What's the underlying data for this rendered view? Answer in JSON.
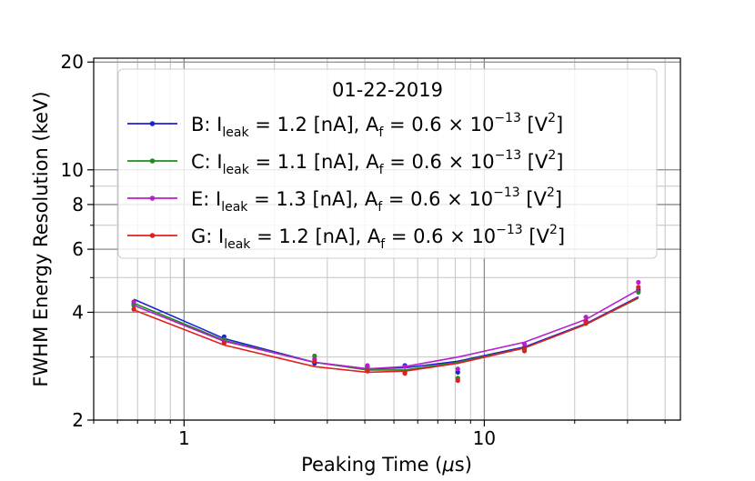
{
  "chart_data": {
    "type": "line",
    "xlabel": "Peaking Time (μs)",
    "ylabel": "FWHM Energy Resolution (keV)",
    "xscale": "log",
    "yscale": "log",
    "xlim": [
      0.5,
      45
    ],
    "ylim": [
      2,
      20.5
    ],
    "xticks": [
      1,
      10
    ],
    "xtick_labels": [
      "1",
      "10"
    ],
    "yticks": [
      2,
      4,
      6,
      8,
      10,
      20
    ],
    "ytick_labels": [
      "2",
      "4",
      "6",
      "8",
      "10",
      "20"
    ],
    "grid": true,
    "legend": {
      "title": "01-22-2019",
      "placement": "upper-center"
    },
    "series": [
      {
        "name": "B: I_leak = 1.2 [nA], A_f = 0.6 × 10^-13 [V^2]",
        "label_parts": {
          "id": "B",
          "ileak": "1.2",
          "af": "0.6",
          "exp": "−13"
        },
        "color": "#1f1fd6",
        "fit_x": [
          0.68,
          1.36,
          2.72,
          4.08,
          5.44,
          8.16,
          13.6,
          21.8,
          32.6
        ],
        "fit_y": [
          4.35,
          3.38,
          2.9,
          2.78,
          2.8,
          2.92,
          3.2,
          3.72,
          4.42
        ],
        "points": [
          [
            0.68,
            4.22
          ],
          [
            1.36,
            3.42
          ],
          [
            2.72,
            2.88
          ],
          [
            4.08,
            2.82
          ],
          [
            5.44,
            2.84
          ],
          [
            8.16,
            2.72
          ],
          [
            13.6,
            3.18
          ],
          [
            21.8,
            3.78
          ],
          [
            32.6,
            4.62
          ]
        ]
      },
      {
        "name": "C: I_leak = 1.1 [nA], A_f = 0.6 × 10^-13 [V^2]",
        "label_parts": {
          "id": "C",
          "ileak": "1.1",
          "af": "0.6",
          "exp": "−13"
        },
        "color": "#1f8c1f",
        "fit_x": [
          0.68,
          1.36,
          2.72,
          4.08,
          5.44,
          8.16,
          13.6,
          21.8,
          32.6
        ],
        "fit_y": [
          4.24,
          3.34,
          2.9,
          2.76,
          2.76,
          2.9,
          3.18,
          3.7,
          4.38
        ],
        "points": [
          [
            0.68,
            4.18
          ],
          [
            1.36,
            3.36
          ],
          [
            2.72,
            3.02
          ],
          [
            4.08,
            2.78
          ],
          [
            5.44,
            2.72
          ],
          [
            8.16,
            2.62
          ],
          [
            13.6,
            3.15
          ],
          [
            21.8,
            3.72
          ],
          [
            32.6,
            4.55
          ]
        ]
      },
      {
        "name": "E: I_leak = 1.3 [nA], A_f = 0.6 × 10^-13 [V^2]",
        "label_parts": {
          "id": "E",
          "ileak": "1.3",
          "af": "0.6",
          "exp": "−13"
        },
        "color": "#b61fc9",
        "fit_x": [
          0.68,
          1.36,
          2.72,
          4.08,
          5.44,
          8.16,
          13.6,
          21.8,
          32.6
        ],
        "fit_y": [
          4.18,
          3.32,
          2.9,
          2.78,
          2.82,
          3.0,
          3.3,
          3.82,
          4.62
        ],
        "points": [
          [
            0.68,
            4.28
          ],
          [
            1.36,
            3.3
          ],
          [
            2.72,
            2.96
          ],
          [
            4.08,
            2.84
          ],
          [
            5.44,
            2.82
          ],
          [
            8.16,
            2.78
          ],
          [
            13.6,
            3.26
          ],
          [
            21.8,
            3.88
          ],
          [
            32.6,
            4.85
          ]
        ]
      },
      {
        "name": "G: I_leak = 1.2 [nA], A_f = 0.6 × 10^-13 [V^2]",
        "label_parts": {
          "id": "G",
          "ileak": "1.2",
          "af": "0.6",
          "exp": "−13"
        },
        "color": "#e02020",
        "fit_x": [
          0.68,
          1.36,
          2.72,
          4.08,
          5.44,
          8.16,
          13.6,
          21.8,
          32.6
        ],
        "fit_y": [
          4.06,
          3.24,
          2.82,
          2.72,
          2.74,
          2.88,
          3.18,
          3.7,
          4.4
        ],
        "points": [
          [
            0.68,
            4.08
          ],
          [
            1.36,
            3.28
          ],
          [
            2.72,
            2.92
          ],
          [
            4.08,
            2.74
          ],
          [
            5.44,
            2.7
          ],
          [
            8.16,
            2.58
          ],
          [
            13.6,
            3.12
          ],
          [
            21.8,
            3.75
          ],
          [
            32.6,
            4.7
          ]
        ]
      }
    ]
  }
}
